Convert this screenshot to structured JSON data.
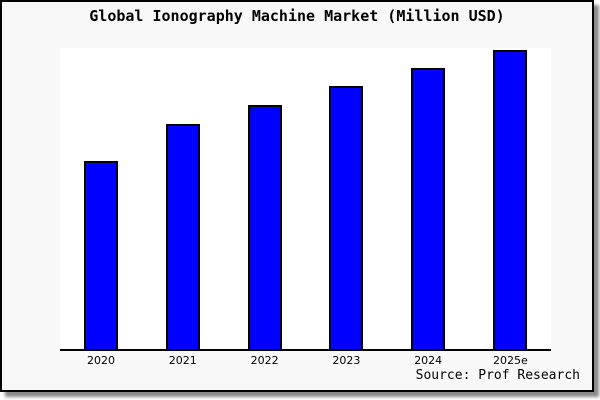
{
  "figure": {
    "background": "#f8f8f8",
    "border_color": "#000000",
    "shadow_color": "#8a8a8a",
    "page_background": "#ffffff"
  },
  "chart_data": {
    "type": "bar",
    "title": "Global Ionography Machine Market (Million USD)",
    "categories": [
      "2020",
      "2021",
      "2022",
      "2023",
      "2024",
      "2025e"
    ],
    "values": [
      188,
      225,
      244,
      263,
      281,
      299
    ],
    "values_note": "y-axis has no tick labels in source image; values are relative bar heights in pixels",
    "y_axis_labeled": false,
    "xlabel": "",
    "ylabel": "",
    "grid": false,
    "legend": "none",
    "bar_color": "#0000ff",
    "bar_border_color": "#000000",
    "plot_background": "#ffffff",
    "axis_color": "#000000",
    "source_note": "Source: Prof Research"
  }
}
